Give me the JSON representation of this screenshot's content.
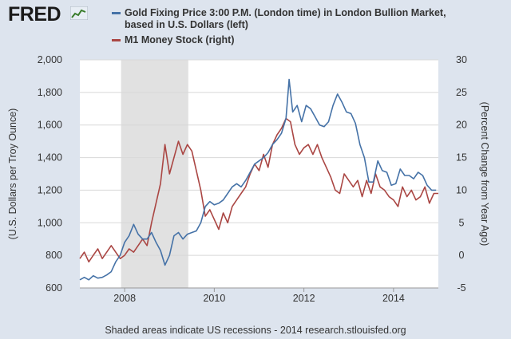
{
  "header": {
    "logo_text": "FRED"
  },
  "footer": {
    "note": "Shaded areas indicate US recessions - 2014 research.stlouisfed.org"
  },
  "colors": {
    "gold": "#4572a7",
    "m1": "#aa4643",
    "recession": "#e1e1e1",
    "plot_bg": "#ffffff",
    "page_bg": "#dde4ee"
  },
  "chart_data": {
    "type": "line",
    "title": "",
    "xlabel": "",
    "ylabel_left": "(U.S. Dollars per Troy Ounce)",
    "ylabel_right": "(Percent Change from Year Ago)",
    "xlim": [
      2007.0,
      2015.0
    ],
    "ylim_left": [
      600,
      2000
    ],
    "ylim_right": [
      -5,
      30
    ],
    "x_ticks": [
      2008,
      2010,
      2012,
      2014
    ],
    "y_ticks_left": [
      600,
      800,
      1000,
      1200,
      1400,
      1600,
      1800,
      2000
    ],
    "y_ticks_right": [
      -5,
      0,
      5,
      10,
      15,
      20,
      25,
      30
    ],
    "grid": true,
    "legend_position": "top",
    "recessions": [
      [
        2007.92,
        2009.42
      ]
    ],
    "series": [
      {
        "name": "Gold Fixing Price 3:00 P.M. (London time) in London Bullion Market, based in U.S. Dollars (left)",
        "axis": "left",
        "color": "#4572a7",
        "x": [
          2007.0,
          2007.1,
          2007.2,
          2007.3,
          2007.4,
          2007.5,
          2007.6,
          2007.7,
          2007.8,
          2007.9,
          2008.0,
          2008.1,
          2008.2,
          2008.3,
          2008.4,
          2008.5,
          2008.6,
          2008.7,
          2008.8,
          2008.9,
          2009.0,
          2009.1,
          2009.2,
          2009.3,
          2009.4,
          2009.5,
          2009.6,
          2009.7,
          2009.8,
          2009.9,
          2010.0,
          2010.1,
          2010.2,
          2010.3,
          2010.4,
          2010.5,
          2010.6,
          2010.7,
          2010.8,
          2010.9,
          2011.0,
          2011.1,
          2011.2,
          2011.3,
          2011.4,
          2011.5,
          2011.6,
          2011.67,
          2011.75,
          2011.85,
          2011.95,
          2012.05,
          2012.15,
          2012.25,
          2012.35,
          2012.45,
          2012.55,
          2012.65,
          2012.75,
          2012.85,
          2012.95,
          2013.05,
          2013.15,
          2013.25,
          2013.35,
          2013.45,
          2013.55,
          2013.65,
          2013.75,
          2013.85,
          2013.95,
          2014.05,
          2014.15,
          2014.25,
          2014.35,
          2014.45,
          2014.55,
          2014.65,
          2014.75,
          2014.85,
          2014.95
        ],
        "values": [
          650,
          665,
          650,
          675,
          660,
          665,
          680,
          700,
          760,
          800,
          880,
          920,
          990,
          930,
          900,
          900,
          940,
          880,
          830,
          740,
          800,
          920,
          940,
          900,
          930,
          940,
          950,
          1000,
          1100,
          1130,
          1110,
          1120,
          1140,
          1180,
          1220,
          1240,
          1220,
          1260,
          1310,
          1360,
          1380,
          1400,
          1430,
          1480,
          1510,
          1550,
          1640,
          1880,
          1680,
          1720,
          1620,
          1720,
          1700,
          1650,
          1600,
          1590,
          1620,
          1720,
          1790,
          1740,
          1680,
          1670,
          1610,
          1480,
          1400,
          1250,
          1250,
          1380,
          1320,
          1310,
          1230,
          1240,
          1330,
          1290,
          1290,
          1270,
          1310,
          1290,
          1230,
          1200,
          1200
        ]
      },
      {
        "name": "M1 Money Stock (right)",
        "axis": "right",
        "color": "#aa4643",
        "x": [
          2007.0,
          2007.1,
          2007.2,
          2007.3,
          2007.4,
          2007.5,
          2007.6,
          2007.7,
          2007.8,
          2007.9,
          2008.0,
          2008.1,
          2008.2,
          2008.3,
          2008.4,
          2008.5,
          2008.6,
          2008.7,
          2008.8,
          2008.9,
          2009.0,
          2009.1,
          2009.2,
          2009.3,
          2009.4,
          2009.5,
          2009.6,
          2009.7,
          2009.8,
          2009.9,
          2010.0,
          2010.1,
          2010.2,
          2010.3,
          2010.4,
          2010.5,
          2010.6,
          2010.7,
          2010.8,
          2010.9,
          2011.0,
          2011.1,
          2011.2,
          2011.3,
          2011.4,
          2011.5,
          2011.6,
          2011.7,
          2011.8,
          2011.9,
          2012.0,
          2012.1,
          2012.2,
          2012.3,
          2012.4,
          2012.5,
          2012.6,
          2012.7,
          2012.8,
          2012.9,
          2013.0,
          2013.1,
          2013.2,
          2013.3,
          2013.4,
          2013.5,
          2013.6,
          2013.7,
          2013.8,
          2013.9,
          2014.0,
          2014.1,
          2014.2,
          2014.3,
          2014.4,
          2014.5,
          2014.6,
          2014.7,
          2014.8,
          2014.9,
          2015.0
        ],
        "values": [
          -0.5,
          0.5,
          -1.0,
          0.0,
          1.0,
          -0.5,
          0.5,
          1.5,
          0.5,
          -0.5,
          0.0,
          1.0,
          0.5,
          1.5,
          2.5,
          1.5,
          5.0,
          8.0,
          11.0,
          17.0,
          12.5,
          15.0,
          17.5,
          15.5,
          17.0,
          16.0,
          13.0,
          10.0,
          6.0,
          7.0,
          5.5,
          4.0,
          6.5,
          5.0,
          7.5,
          8.5,
          9.5,
          10.5,
          12.5,
          14.0,
          13.0,
          15.5,
          13.5,
          17.0,
          18.5,
          19.5,
          21.0,
          20.5,
          17.0,
          15.5,
          16.5,
          17.0,
          15.5,
          17.0,
          15.0,
          13.5,
          12.0,
          10.0,
          9.5,
          12.5,
          11.5,
          10.5,
          11.5,
          9.0,
          11.5,
          9.5,
          12.5,
          10.5,
          10.0,
          9.0,
          8.5,
          7.5,
          10.5,
          9.0,
          10.0,
          8.5,
          9.0,
          10.5,
          8.0,
          9.5,
          9.5
        ]
      }
    ]
  }
}
